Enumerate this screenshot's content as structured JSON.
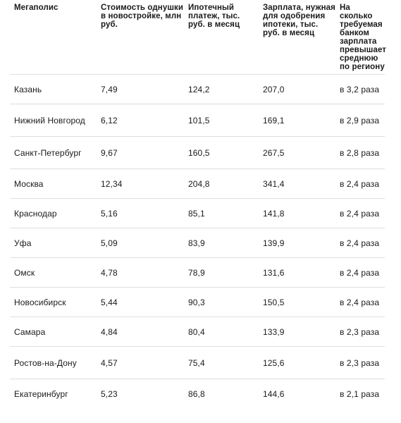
{
  "table": {
    "headers": [
      "Мегаполис",
      "Стоимость однушки в новостройке, млн руб.",
      "Ипотечный платеж, тыс. руб. в месяц",
      "Зарплата, нужная для одобрения ипотеки, тыс. руб. в месяц",
      "На сколько требуемая банком зарплата превышает среднюю по региону"
    ],
    "rows": [
      {
        "city": "Казань",
        "price": "7,49",
        "payment": "124,2",
        "salary": "207,0",
        "ratio": "в 3,2 раза"
      },
      {
        "city": "Нижний Новгород",
        "price": "6,12",
        "payment": "101,5",
        "salary": "169,1",
        "ratio": "в 2,9 раза"
      },
      {
        "city": "Санкт-Петербург",
        "price": "9,67",
        "payment": "160,5",
        "salary": "267,5",
        "ratio": "в 2,8 раза"
      },
      {
        "city": "Москва",
        "price": "12,34",
        "payment": "204,8",
        "salary": "341,4",
        "ratio": "в 2,4 раза"
      },
      {
        "city": "Краснодар",
        "price": "5,16",
        "payment": "85,1",
        "salary": "141,8",
        "ratio": "в 2,4 раза"
      },
      {
        "city": "Уфа",
        "price": "5,09",
        "payment": "83,9",
        "salary": "139,9",
        "ratio": "в 2,4 раза"
      },
      {
        "city": "Омск",
        "price": "4,78",
        "payment": "78,9",
        "salary": "131,6",
        "ratio": "в 2,4 раза"
      },
      {
        "city": "Новосибирск",
        "price": "5,44",
        "payment": "90,3",
        "salary": "150,5",
        "ratio": "в 2,4 раза"
      },
      {
        "city": "Самара",
        "price": "4,84",
        "payment": "80,4",
        "salary": "133,9",
        "ratio": "в 2,3 раза"
      },
      {
        "city": "Ростов-на-Дону",
        "price": "4,57",
        "payment": "75,4",
        "salary": "125,6",
        "ratio": "в 2,3 раза"
      },
      {
        "city": "Екатеринбург",
        "price": "5,23",
        "payment": "86,8",
        "salary": "144,6",
        "ratio": "в 2,1 раза"
      }
    ]
  }
}
